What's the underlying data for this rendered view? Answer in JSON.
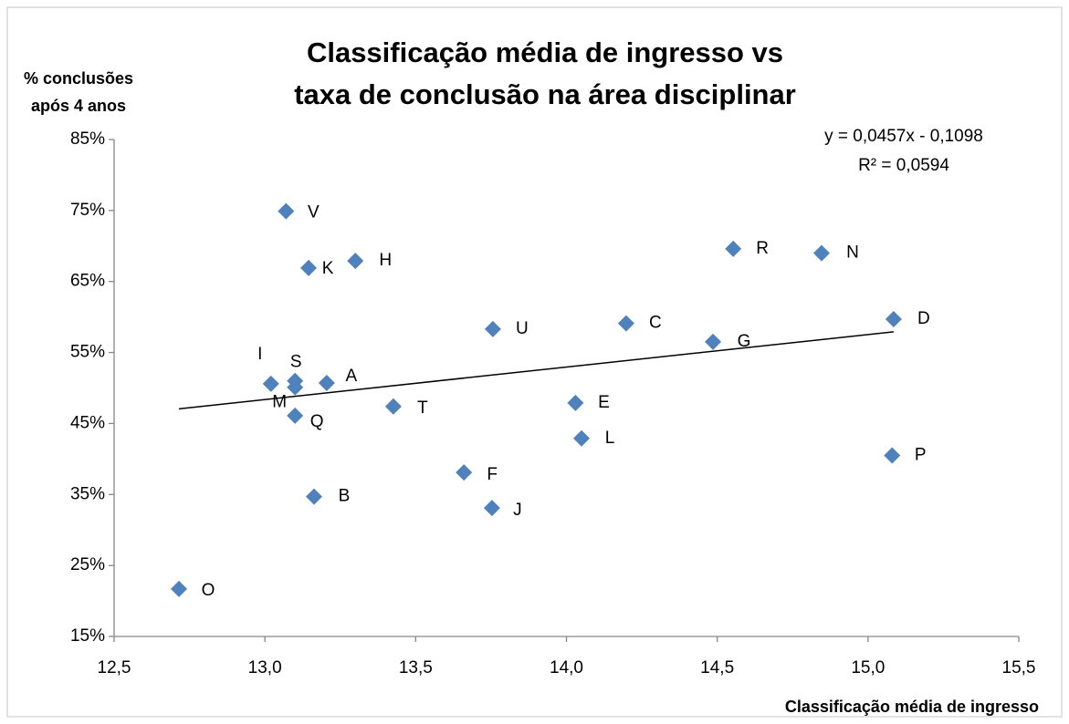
{
  "chart_data": {
    "type": "scatter",
    "title": [
      "Classificação média de ingresso vs",
      "taxa de conclusão na área disciplinar"
    ],
    "y_label": [
      "% conclusões",
      "após 4 anos"
    ],
    "x_label": "Classificação média de ingresso",
    "annotations": [
      "y = 0,0457x - 0,1098",
      "R² = 0,0594"
    ],
    "color": "#4f81bd",
    "series": [
      {
        "name": null,
        "labels": [
          "V",
          "K",
          "H",
          "U",
          "C",
          "G",
          "R",
          "N",
          "D",
          "I",
          "S",
          "M",
          "A",
          "Q",
          "T",
          "E",
          "L",
          "F",
          "J",
          "B",
          "O",
          "P"
        ],
        "x": [
          13.07,
          13.145,
          13.3,
          13.756,
          14.198,
          14.486,
          14.553,
          14.846,
          15.085,
          13.02,
          13.1,
          13.1,
          13.205,
          13.1,
          13.426,
          14.03,
          14.05,
          13.66,
          13.753,
          13.163,
          12.715,
          15.08
        ],
        "values": [
          74.9,
          66.9,
          67.9,
          58.3,
          59.1,
          56.5,
          69.6,
          69.0,
          59.7,
          50.6,
          51.0,
          50.1,
          50.7,
          46.1,
          47.4,
          47.9,
          42.9,
          38.1,
          33.1,
          34.7,
          21.7,
          40.5
        ]
      }
    ],
    "xlim": [
      12.5,
      15.5
    ],
    "xticks": [
      {
        "value": 12.5,
        "label": "12,5"
      },
      {
        "value": 13.0,
        "label": "13,0"
      },
      {
        "value": 13.5,
        "label": "13,5"
      },
      {
        "value": 14.0,
        "label": "14,0"
      },
      {
        "value": 14.5,
        "label": "14,5"
      },
      {
        "value": 15.0,
        "label": "15,0"
      },
      {
        "value": 15.5,
        "label": "15,5"
      }
    ],
    "ylim": [
      15,
      85
    ],
    "yticks": [
      {
        "value": 15,
        "label": "15%"
      },
      {
        "value": 25,
        "label": "25%"
      },
      {
        "value": 35,
        "label": "35%"
      },
      {
        "value": 45,
        "label": "45%"
      },
      {
        "value": 55,
        "label": "55%"
      },
      {
        "value": 65,
        "label": "65%"
      },
      {
        "value": 75,
        "label": "75%"
      },
      {
        "value": 85,
        "label": "85%"
      }
    ],
    "trendline": true
  }
}
